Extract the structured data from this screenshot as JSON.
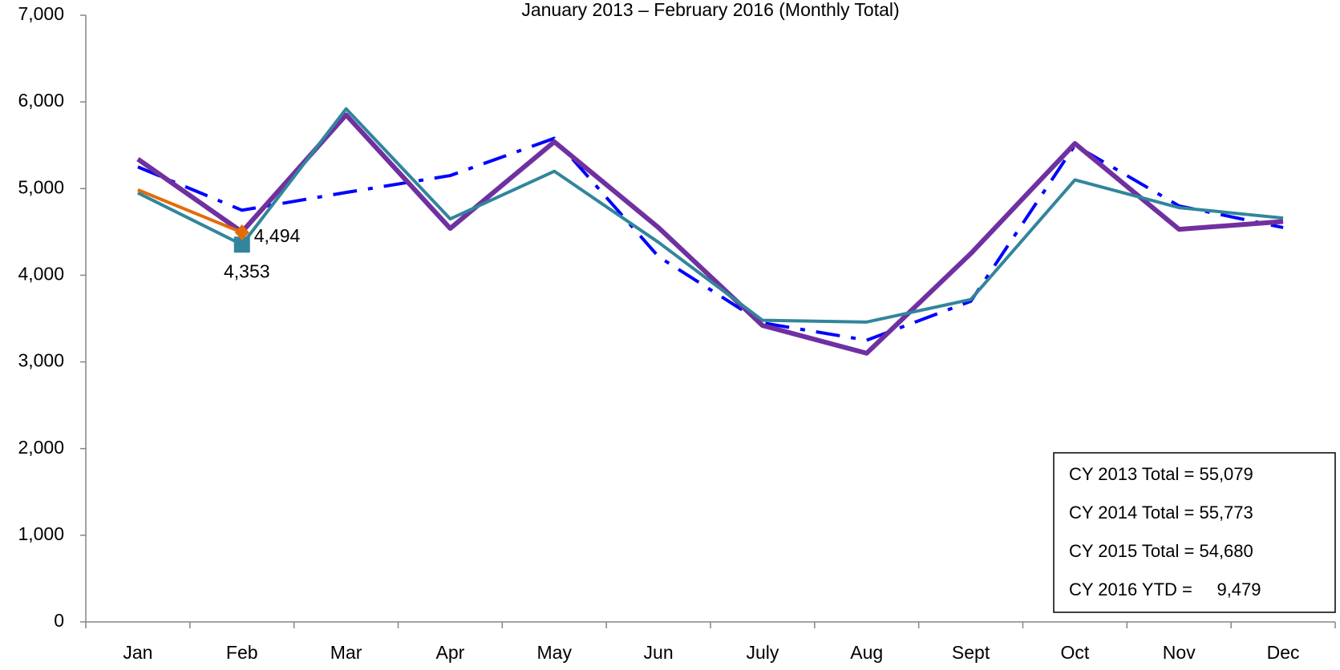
{
  "chart_data": {
    "type": "line",
    "title": "January 2013 – February 2016 (Monthly Total)",
    "categories": [
      "Jan",
      "Feb",
      "Mar",
      "Apr",
      "May",
      "Jun",
      "July",
      "Aug",
      "Sept",
      "Oct",
      "Nov",
      "Dec"
    ],
    "series": [
      {
        "color": "#0000ff",
        "dash": "dashdot",
        "width": 4,
        "values": [
          5250,
          4750,
          4955,
          5150,
          5580,
          4215,
          3450,
          3250,
          3700,
          5500,
          4800,
          4550
        ]
      },
      {
        "color": "#7030a0",
        "width": 6,
        "values": [
          5340,
          4500,
          5850,
          4540,
          5540,
          4550,
          3420,
          3100,
          4250,
          5520,
          4530,
          4620
        ]
      },
      {
        "color": "#31859c",
        "width": 4,
        "marker": "square",
        "values": [
          4950,
          4353,
          5920,
          4650,
          5200,
          4380,
          3480,
          3460,
          3720,
          5100,
          4780,
          4660
        ],
        "value_labels": [
          null,
          "4,353",
          null,
          null,
          null,
          null,
          null,
          null,
          null,
          null,
          null,
          null
        ]
      },
      {
        "color": "#e36c09",
        "width": 4,
        "marker": "diamond",
        "values": [
          4985,
          4494,
          null,
          null,
          null,
          null,
          null,
          null,
          null,
          null,
          null,
          null
        ],
        "value_labels": [
          null,
          "4,494",
          null,
          null,
          null,
          null,
          null,
          null,
          null,
          null,
          null,
          null
        ]
      }
    ],
    "ylim": [
      0,
      7000
    ],
    "yticks": [
      0,
      {
        "value": 1000,
        "label": "1,000"
      },
      {
        "value": 2000,
        "label": "2,000"
      },
      {
        "value": 3000,
        "label": "3,000"
      },
      {
        "value": 4000,
        "label": "4,000"
      },
      {
        "value": 5000,
        "label": "5,000"
      },
      {
        "value": 6000,
        "label": "6,000"
      },
      {
        "value": 7000,
        "label": "7,000"
      }
    ],
    "annotations": [
      "CY 2013 Total = 55,079",
      "CY 2014 Total = 55,773",
      "CY 2015 Total = 54,680",
      "CY 2016 YTD =     9,479"
    ]
  }
}
